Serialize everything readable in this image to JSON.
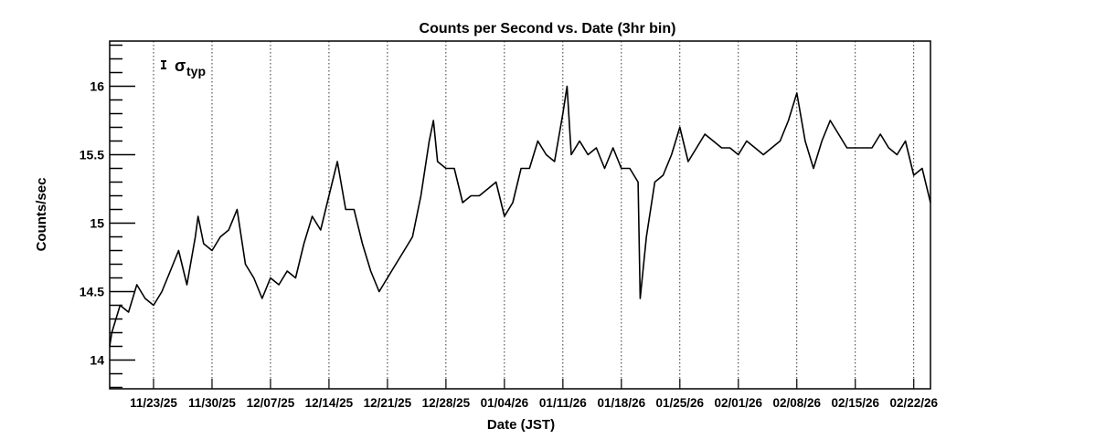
{
  "chart_data": {
    "type": "line",
    "title": "Counts per Second vs. Date (3hr bin)",
    "xlabel": "Date (JST)",
    "ylabel": "Counts/sec",
    "ylim": [
      13.79,
      16.33
    ],
    "xlim": [
      "2025-11-17T18:00",
      "2026-02-24T00:00"
    ],
    "yticks": [
      14,
      14.5,
      15,
      15.5,
      16
    ],
    "ytick_labels": [
      "14",
      "14.5",
      "15",
      "15.5",
      "16"
    ],
    "xticks": [
      "2025-11-23",
      "2025-11-30",
      "2025-12-07",
      "2025-12-14",
      "2025-12-21",
      "2025-12-28",
      "2026-01-04",
      "2026-01-11",
      "2026-01-18",
      "2026-01-25",
      "2026-02-01",
      "2026-02-08",
      "2026-02-15",
      "2026-02-22"
    ],
    "xtick_labels": [
      "11/23/25",
      "11/30/25",
      "12/07/25",
      "12/14/25",
      "12/21/25",
      "12/28/25",
      "01/04/26",
      "01/11/26",
      "01/18/26",
      "01/25/26",
      "02/01/26",
      "02/08/26",
      "02/15/26",
      "02/22/26"
    ],
    "grid": "vertical dotted at major x ticks",
    "legend": {
      "text": "σ",
      "subscript": "typ",
      "placement": "top-left"
    },
    "line_color": "#000000",
    "x": [
      "2025-11-17T18:00",
      "2025-11-18",
      "2025-11-19",
      "2025-11-20",
      "2025-11-21",
      "2025-11-22",
      "2025-11-23",
      "2025-11-24",
      "2025-11-25",
      "2025-11-26",
      "2025-11-27",
      "2025-11-28",
      "2025-11-28T08:00",
      "2025-11-29",
      "2025-11-30",
      "2025-12-01",
      "2025-12-02",
      "2025-12-03",
      "2025-12-04",
      "2025-12-05",
      "2025-12-06",
      "2025-12-07",
      "2025-12-08",
      "2025-12-09",
      "2025-12-10",
      "2025-12-11",
      "2025-12-12",
      "2025-12-13",
      "2025-12-14",
      "2025-12-15",
      "2025-12-16",
      "2025-12-17",
      "2025-12-18",
      "2025-12-19",
      "2025-12-20",
      "2025-12-21",
      "2025-12-22",
      "2025-12-23",
      "2025-12-24",
      "2025-12-25",
      "2025-12-26",
      "2025-12-26T12:00",
      "2025-12-27",
      "2025-12-28",
      "2025-12-29",
      "2025-12-30",
      "2025-12-31",
      "2026-01-01",
      "2026-01-02",
      "2026-01-03",
      "2026-01-04",
      "2026-01-05",
      "2026-01-06",
      "2026-01-07",
      "2026-01-08",
      "2026-01-09",
      "2026-01-10",
      "2026-01-11",
      "2026-01-11T12:00",
      "2026-01-12",
      "2026-01-13",
      "2026-01-14",
      "2026-01-15",
      "2026-01-16",
      "2026-01-17",
      "2026-01-18",
      "2026-01-19",
      "2026-01-20",
      "2026-01-20T06:00",
      "2026-01-21",
      "2026-01-22",
      "2026-01-23",
      "2026-01-24",
      "2026-01-25",
      "2026-01-26",
      "2026-01-27",
      "2026-01-28",
      "2026-01-29",
      "2026-01-30",
      "2026-01-31",
      "2026-02-01",
      "2026-02-02",
      "2026-02-03",
      "2026-02-04",
      "2026-02-05",
      "2026-02-06",
      "2026-02-07",
      "2026-02-08",
      "2026-02-09",
      "2026-02-10",
      "2026-02-11",
      "2026-02-12",
      "2026-02-13",
      "2026-02-14",
      "2026-02-15",
      "2026-02-16",
      "2026-02-17",
      "2026-02-18",
      "2026-02-19",
      "2026-02-20",
      "2026-02-21",
      "2026-02-22",
      "2026-02-23",
      "2026-02-24"
    ],
    "y": [
      14.1,
      14.2,
      14.4,
      14.35,
      14.55,
      14.45,
      14.4,
      14.5,
      14.65,
      14.8,
      14.55,
      14.9,
      15.05,
      14.85,
      14.8,
      14.9,
      14.95,
      15.1,
      14.7,
      14.6,
      14.45,
      14.6,
      14.55,
      14.65,
      14.6,
      14.85,
      15.05,
      14.95,
      15.2,
      15.45,
      15.1,
      15.1,
      14.85,
      14.65,
      14.5,
      14.6,
      14.7,
      14.8,
      14.9,
      15.2,
      15.6,
      15.75,
      15.45,
      15.4,
      15.4,
      15.15,
      15.2,
      15.2,
      15.25,
      15.3,
      15.05,
      15.15,
      15.4,
      15.4,
      15.6,
      15.5,
      15.45,
      15.8,
      16.0,
      15.5,
      15.6,
      15.5,
      15.55,
      15.4,
      15.55,
      15.4,
      15.4,
      15.3,
      14.45,
      14.9,
      15.3,
      15.35,
      15.5,
      15.7,
      15.45,
      15.55,
      15.65,
      15.6,
      15.55,
      15.55,
      15.5,
      15.6,
      15.55,
      15.5,
      15.55,
      15.6,
      15.75,
      15.95,
      15.6,
      15.4,
      15.6,
      15.75,
      15.65,
      15.55,
      15.55,
      15.55,
      15.55,
      15.65,
      15.55,
      15.5,
      15.6,
      15.35,
      15.4,
      15.15
    ]
  }
}
